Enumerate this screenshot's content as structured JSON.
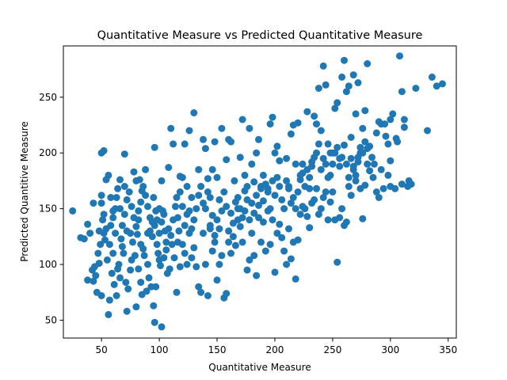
{
  "chart_data": {
    "type": "scatter",
    "title": "Quantitative Measure vs Predicted Quantitative Measure",
    "xlabel": "Quantitative Measure",
    "ylabel": "Predicted Quantitive Measure",
    "xlim": [
      17,
      357
    ],
    "ylim": [
      34,
      296
    ],
    "xticks": [
      50,
      100,
      150,
      200,
      250,
      300,
      350
    ],
    "yticks": [
      50,
      100,
      150,
      200,
      250
    ],
    "grid": false,
    "legend": "none",
    "marker_color": "#1f77b4",
    "points": [
      [
        25,
        148
      ],
      [
        32,
        124
      ],
      [
        38,
        136
      ],
      [
        40,
        128
      ],
      [
        43,
        155
      ],
      [
        38,
        86
      ],
      [
        42,
        95
      ],
      [
        45,
        90
      ],
      [
        43,
        85
      ],
      [
        47,
        110
      ],
      [
        48,
        101
      ],
      [
        49,
        118
      ],
      [
        50,
        200
      ],
      [
        52,
        202
      ],
      [
        51,
        140
      ],
      [
        53,
        122
      ],
      [
        54,
        176
      ],
      [
        56,
        180
      ],
      [
        50,
        162
      ],
      [
        58,
        135
      ],
      [
        60,
        148
      ],
      [
        57,
        118
      ],
      [
        62,
        150
      ],
      [
        60,
        110
      ],
      [
        65,
        100
      ],
      [
        68,
        116
      ],
      [
        63,
        160
      ],
      [
        66,
        176
      ],
      [
        70,
        170
      ],
      [
        72,
        158
      ],
      [
        70,
        199
      ],
      [
        75,
        128
      ],
      [
        78,
        183
      ],
      [
        80,
        175
      ],
      [
        77,
        120
      ],
      [
        82,
        140
      ],
      [
        85,
        166
      ],
      [
        83,
        176
      ],
      [
        84,
        118
      ],
      [
        88,
        185
      ],
      [
        90,
        152
      ],
      [
        92,
        130
      ],
      [
        95,
        160
      ],
      [
        94,
        138
      ],
      [
        97,
        148
      ],
      [
        96,
        205
      ],
      [
        98,
        118
      ],
      [
        100,
        150
      ],
      [
        102,
        175
      ],
      [
        105,
        130
      ],
      [
        103,
        148
      ],
      [
        108,
        187
      ],
      [
        110,
        222
      ],
      [
        112,
        208
      ],
      [
        115,
        160
      ],
      [
        118,
        179
      ],
      [
        117,
        130
      ],
      [
        120,
        178
      ],
      [
        122,
        208
      ],
      [
        124,
        170
      ],
      [
        128,
        160
      ],
      [
        126,
        220
      ],
      [
        130,
        236
      ],
      [
        134,
        185
      ],
      [
        138,
        212
      ],
      [
        140,
        204
      ],
      [
        142,
        177
      ],
      [
        144,
        160
      ],
      [
        146,
        185
      ],
      [
        148,
        210
      ],
      [
        150,
        178
      ],
      [
        152,
        158
      ],
      [
        154,
        222
      ],
      [
        158,
        194
      ],
      [
        160,
        212
      ],
      [
        162,
        210
      ],
      [
        165,
        175
      ],
      [
        168,
        150
      ],
      [
        170,
        196
      ],
      [
        172,
        230
      ],
      [
        174,
        180
      ],
      [
        176,
        170
      ],
      [
        178,
        222
      ],
      [
        180,
        190
      ],
      [
        182,
        174
      ],
      [
        184,
        200
      ],
      [
        186,
        212
      ],
      [
        188,
        170
      ],
      [
        190,
        157
      ],
      [
        194,
        168
      ],
      [
        196,
        226
      ],
      [
        198,
        232
      ],
      [
        200,
        200
      ],
      [
        202,
        206
      ],
      [
        204,
        193
      ],
      [
        210,
        195
      ],
      [
        212,
        170
      ],
      [
        214,
        217
      ],
      [
        216,
        225
      ],
      [
        218,
        190
      ],
      [
        220,
        227
      ],
      [
        222,
        176
      ],
      [
        224,
        182
      ],
      [
        228,
        237
      ],
      [
        230,
        168
      ],
      [
        232,
        192
      ],
      [
        234,
        233
      ],
      [
        236,
        226
      ],
      [
        238,
        258
      ],
      [
        240,
        220
      ],
      [
        242,
        278
      ],
      [
        244,
        261
      ],
      [
        246,
        208
      ],
      [
        248,
        180
      ],
      [
        250,
        200
      ],
      [
        252,
        240
      ],
      [
        254,
        245
      ],
      [
        256,
        195
      ],
      [
        258,
        268
      ],
      [
        260,
        283
      ],
      [
        262,
        255
      ],
      [
        264,
        260
      ],
      [
        266,
        214
      ],
      [
        268,
        270
      ],
      [
        270,
        235
      ],
      [
        272,
        263
      ],
      [
        274,
        200
      ],
      [
        276,
        222
      ],
      [
        278,
        238
      ],
      [
        280,
        280
      ],
      [
        282,
        206
      ],
      [
        285,
        178
      ],
      [
        288,
        165
      ],
      [
        290,
        228
      ],
      [
        292,
        185
      ],
      [
        295,
        226
      ],
      [
        298,
        180
      ],
      [
        300,
        170
      ],
      [
        302,
        235
      ],
      [
        304,
        168
      ],
      [
        308,
        287
      ],
      [
        310,
        255
      ],
      [
        312,
        230
      ],
      [
        315,
        170
      ],
      [
        318,
        172
      ],
      [
        322,
        258
      ],
      [
        332,
        220
      ],
      [
        336,
        268
      ],
      [
        340,
        260
      ],
      [
        345,
        262
      ],
      [
        35,
        123
      ],
      [
        44,
        98
      ],
      [
        46,
        75
      ],
      [
        50,
        72
      ],
      [
        52,
        128
      ],
      [
        55,
        104
      ],
      [
        56,
        55
      ],
      [
        57,
        68
      ],
      [
        59,
        92
      ],
      [
        61,
        82
      ],
      [
        63,
        72
      ],
      [
        64,
        96
      ],
      [
        66,
        88
      ],
      [
        67,
        123
      ],
      [
        69,
        110
      ],
      [
        71,
        84
      ],
      [
        72,
        58
      ],
      [
        73,
        78
      ],
      [
        75,
        95
      ],
      [
        76,
        104
      ],
      [
        79,
        108
      ],
      [
        80,
        62
      ],
      [
        81,
        127
      ],
      [
        82,
        96
      ],
      [
        84,
        84
      ],
      [
        85,
        73
      ],
      [
        86,
        114
      ],
      [
        87,
        108
      ],
      [
        89,
        76
      ],
      [
        90,
        100
      ],
      [
        91,
        88
      ],
      [
        93,
        80
      ],
      [
        95,
        63
      ],
      [
        96,
        48
      ],
      [
        97,
        80
      ],
      [
        99,
        110
      ],
      [
        100,
        104
      ],
      [
        101,
        99
      ],
      [
        102,
        44
      ],
      [
        104,
        106
      ],
      [
        106,
        113
      ],
      [
        107,
        92
      ],
      [
        109,
        96
      ],
      [
        111,
        118
      ],
      [
        113,
        106
      ],
      [
        115,
        75
      ],
      [
        116,
        120
      ],
      [
        118,
        98
      ],
      [
        120,
        118
      ],
      [
        122,
        110
      ],
      [
        124,
        100
      ],
      [
        126,
        128
      ],
      [
        128,
        106
      ],
      [
        130,
        115
      ],
      [
        132,
        98
      ],
      [
        134,
        80
      ],
      [
        136,
        75
      ],
      [
        138,
        128
      ],
      [
        140,
        100
      ],
      [
        142,
        72
      ],
      [
        144,
        132
      ],
      [
        146,
        112
      ],
      [
        148,
        120
      ],
      [
        150,
        86
      ],
      [
        152,
        100
      ],
      [
        154,
        108
      ],
      [
        156,
        70
      ],
      [
        158,
        74
      ],
      [
        160,
        120
      ],
      [
        162,
        110
      ],
      [
        164,
        125
      ],
      [
        166,
        117
      ],
      [
        168,
        140
      ],
      [
        170,
        134
      ],
      [
        172,
        120
      ],
      [
        174,
        148
      ],
      [
        176,
        95
      ],
      [
        178,
        104
      ],
      [
        180,
        128
      ],
      [
        182,
        108
      ],
      [
        184,
        90
      ],
      [
        186,
        142
      ],
      [
        188,
        120
      ],
      [
        190,
        138
      ],
      [
        192,
        112
      ],
      [
        194,
        148
      ],
      [
        196,
        118
      ],
      [
        198,
        140
      ],
      [
        200,
        93
      ],
      [
        202,
        128
      ],
      [
        204,
        136
      ],
      [
        206,
        124
      ],
      [
        208,
        112
      ],
      [
        210,
        100
      ],
      [
        212,
        132
      ],
      [
        214,
        105
      ],
      [
        216,
        120
      ],
      [
        218,
        87
      ],
      [
        220,
        122
      ],
      [
        222,
        145
      ],
      [
        224,
        152
      ],
      [
        226,
        150
      ],
      [
        228,
        143
      ],
      [
        230,
        133
      ],
      [
        232,
        155
      ],
      [
        234,
        158
      ],
      [
        236,
        168
      ],
      [
        238,
        145
      ],
      [
        240,
        150
      ],
      [
        242,
        160
      ],
      [
        244,
        165
      ],
      [
        246,
        140
      ],
      [
        248,
        156
      ],
      [
        250,
        165
      ],
      [
        252,
        140
      ],
      [
        254,
        102
      ],
      [
        256,
        142
      ],
      [
        258,
        150
      ],
      [
        260,
        135
      ],
      [
        262,
        138
      ],
      [
        264,
        170
      ],
      [
        266,
        162
      ],
      [
        268,
        185
      ],
      [
        270,
        175
      ],
      [
        272,
        196
      ],
      [
        274,
        168
      ],
      [
        276,
        141
      ],
      [
        278,
        171
      ],
      [
        280,
        190
      ],
      [
        282,
        184
      ],
      [
        286,
        190
      ],
      [
        290,
        160
      ],
      [
        294,
        168
      ],
      [
        298,
        208
      ],
      [
        300,
        193
      ],
      [
        306,
        210
      ],
      [
        310,
        172
      ],
      [
        312,
        223
      ],
      [
        316,
        175
      ],
      [
        48,
        130
      ],
      [
        50,
        155
      ],
      [
        52,
        145
      ],
      [
        54,
        132
      ],
      [
        58,
        160
      ],
      [
        60,
        142
      ],
      [
        62,
        128
      ],
      [
        64,
        168
      ],
      [
        66,
        150
      ],
      [
        68,
        135
      ],
      [
        70,
        145
      ],
      [
        72,
        130
      ],
      [
        74,
        165
      ],
      [
        76,
        152
      ],
      [
        78,
        142
      ],
      [
        80,
        134
      ],
      [
        82,
        148
      ],
      [
        84,
        156
      ],
      [
        86,
        170
      ],
      [
        88,
        162
      ],
      [
        90,
        128
      ],
      [
        92,
        142
      ],
      [
        94,
        125
      ],
      [
        96,
        135
      ],
      [
        98,
        140
      ],
      [
        100,
        128
      ],
      [
        102,
        138
      ],
      [
        104,
        145
      ],
      [
        106,
        120
      ],
      [
        108,
        132
      ],
      [
        110,
        126
      ],
      [
        112,
        140
      ],
      [
        114,
        152
      ],
      [
        116,
        142
      ],
      [
        118,
        165
      ],
      [
        120,
        152
      ],
      [
        122,
        135
      ],
      [
        124,
        145
      ],
      [
        126,
        148
      ],
      [
        128,
        132
      ],
      [
        130,
        140
      ],
      [
        132,
        150
      ],
      [
        134,
        162
      ],
      [
        136,
        170
      ],
      [
        138,
        155
      ],
      [
        140,
        150
      ],
      [
        142,
        165
      ],
      [
        144,
        135
      ],
      [
        146,
        144
      ],
      [
        148,
        126
      ],
      [
        150,
        140
      ],
      [
        152,
        132
      ],
      [
        154,
        148
      ],
      [
        156,
        165
      ],
      [
        158,
        152
      ],
      [
        160,
        130
      ],
      [
        162,
        146
      ],
      [
        164,
        137
      ],
      [
        166,
        156
      ],
      [
        168,
        160
      ],
      [
        170,
        150
      ],
      [
        172,
        142
      ],
      [
        174,
        166
      ],
      [
        176,
        158
      ],
      [
        178,
        140
      ],
      [
        180,
        155
      ],
      [
        182,
        146
      ],
      [
        184,
        162
      ],
      [
        186,
        153
      ],
      [
        188,
        168
      ],
      [
        190,
        180
      ],
      [
        192,
        172
      ],
      [
        194,
        165
      ],
      [
        196,
        150
      ],
      [
        198,
        175
      ],
      [
        200,
        162
      ],
      [
        202,
        178
      ],
      [
        204,
        170
      ],
      [
        206,
        158
      ],
      [
        208,
        150
      ],
      [
        210,
        175
      ],
      [
        212,
        168
      ],
      [
        214,
        155
      ],
      [
        216,
        160
      ],
      [
        218,
        150
      ],
      [
        220,
        165
      ],
      [
        222,
        180
      ],
      [
        224,
        190
      ],
      [
        226,
        170
      ],
      [
        228,
        185
      ],
      [
        230,
        178
      ],
      [
        232,
        188
      ],
      [
        234,
        196
      ],
      [
        236,
        200
      ],
      [
        238,
        208
      ],
      [
        240,
        185
      ],
      [
        242,
        195
      ],
      [
        244,
        190
      ],
      [
        246,
        178
      ],
      [
        248,
        200
      ],
      [
        250,
        190
      ],
      [
        252,
        200
      ],
      [
        254,
        205
      ],
      [
        256,
        188
      ],
      [
        258,
        196
      ],
      [
        260,
        207
      ],
      [
        262,
        190
      ],
      [
        264,
        178
      ],
      [
        266,
        195
      ],
      [
        268,
        188
      ],
      [
        270,
        180
      ],
      [
        272,
        192
      ],
      [
        274,
        205
      ],
      [
        276,
        200
      ],
      [
        278,
        210
      ],
      [
        280,
        204
      ],
      [
        284,
        196
      ],
      [
        288,
        218
      ],
      [
        292,
        226
      ],
      [
        296,
        215
      ],
      [
        300,
        230
      ],
      [
        305,
        213
      ]
    ]
  }
}
